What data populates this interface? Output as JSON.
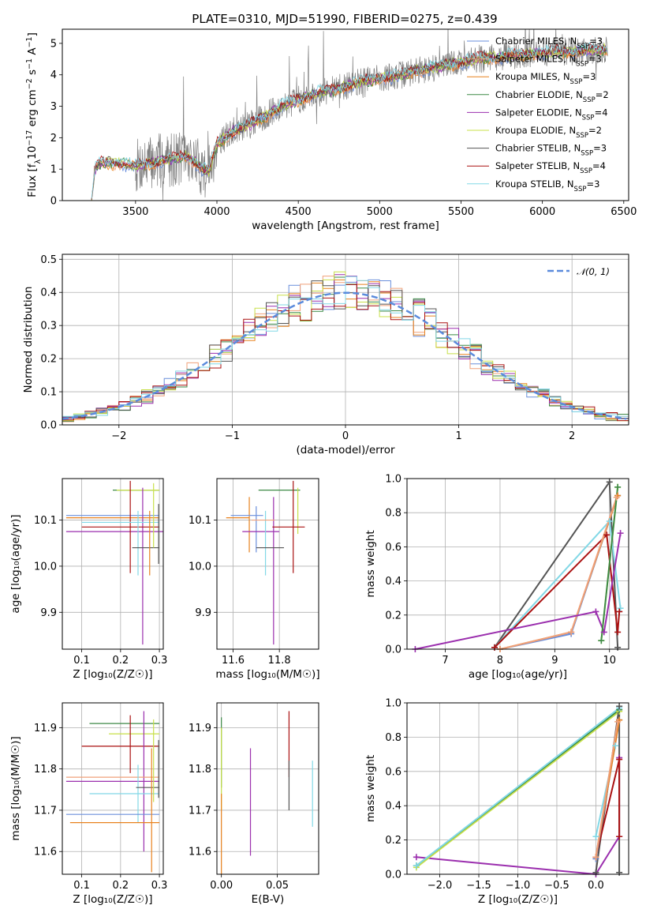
{
  "figure_title": "PLATE=0310, MJD=51990, FIBERID=0275, z=0.439",
  "palette": {
    "Chabrier MILES": "#6a8fdc",
    "Salpeter MILES": "#f0a17a",
    "Kroupa MILES": "#e8821e",
    "Chabrier ELODIE": "#3d8a47",
    "Salpeter ELODIE": "#9b2fae",
    "Kroupa ELODIE": "#c8e04a",
    "Chabrier STELIB": "#555555",
    "Salpeter STELIB": "#aa1111",
    "Kroupa STELIB": "#82d8e6",
    "data": "#808080",
    "normal": "#5b8bdc"
  },
  "chart_data": [
    {
      "type": "line",
      "id": "spectrum",
      "title": "PLATE=0310, MJD=51990, FIBERID=0275, z=0.439",
      "xlabel": "wavelength [Angstrom, rest frame]",
      "ylabel_parts": [
        "Flux [f",
        "λ",
        "10",
        "−17",
        " erg cm",
        "−2",
        " s",
        "−1",
        " A",
        "−1",
        "]"
      ],
      "xlim": [
        3050,
        6530
      ],
      "ylim": [
        0,
        5.45
      ],
      "xticks": [
        3500,
        4000,
        4500,
        5000,
        5500,
        6000,
        6500
      ],
      "xtick_labels": [
        "3500",
        "4000",
        "4500",
        "5000",
        "5500",
        "6000",
        "6500"
      ],
      "yticks": [
        0,
        1,
        2,
        3,
        4,
        5
      ],
      "ytick_labels": [
        "0",
        "1",
        "2",
        "3",
        "4",
        "5"
      ],
      "model_continuum": {
        "x": [
          3230,
          3250,
          3270,
          3300,
          3350,
          3400,
          3450,
          3500,
          3550,
          3600,
          3650,
          3700,
          3750,
          3800,
          3850,
          3900,
          3950,
          4000,
          4100,
          4200,
          4300,
          4400,
          4500,
          4600,
          4700,
          4800,
          4900,
          5000,
          5100,
          5200,
          5300,
          5400,
          5500,
          5600,
          5700,
          5800,
          5900,
          6000,
          6100,
          6200,
          6300,
          6400
        ],
        "y": [
          0.0,
          1.0,
          1.15,
          1.2,
          1.18,
          1.2,
          1.15,
          1.1,
          1.15,
          1.2,
          1.25,
          1.3,
          1.35,
          1.4,
          1.3,
          1.05,
          0.9,
          1.8,
          2.2,
          2.4,
          2.7,
          3.0,
          3.2,
          3.4,
          3.5,
          3.65,
          3.8,
          3.9,
          3.95,
          4.1,
          4.2,
          4.3,
          4.4,
          4.5,
          4.55,
          4.6,
          4.65,
          4.7,
          4.72,
          4.75,
          4.78,
          4.8
        ]
      },
      "data_range": [
        3500,
        6400
      ],
      "legend": [
        {
          "name": "Chabrier MILES",
          "nssp": "3"
        },
        {
          "name": "Salpeter MILES",
          "nssp": "3"
        },
        {
          "name": "Kroupa MILES",
          "nssp": "3"
        },
        {
          "name": "Chabrier ELODIE",
          "nssp": "2"
        },
        {
          "name": "Salpeter ELODIE",
          "nssp": "4"
        },
        {
          "name": "Kroupa ELODIE",
          "nssp": "2"
        },
        {
          "name": "Chabrier STELIB",
          "nssp": "3"
        },
        {
          "name": "Salpeter STELIB",
          "nssp": "4"
        },
        {
          "name": "Kroupa STELIB",
          "nssp": "3"
        }
      ],
      "legend_prefix": ", N",
      "legend_sub": "SSP",
      "legend_eq": "=",
      "legend_placement": "upper right",
      "grid": false
    },
    {
      "type": "step",
      "id": "residuals",
      "xlabel": "(data-model)/error",
      "ylabel": "Normed distribution",
      "xlim": [
        -2.5,
        2.5
      ],
      "ylim": [
        0,
        0.515
      ],
      "xticks": [
        -2,
        -1,
        0,
        1,
        2
      ],
      "xtick_labels": [
        "−2",
        "−1",
        "0",
        "1",
        "2"
      ],
      "yticks": [
        0,
        0.1,
        0.2,
        0.3,
        0.4,
        0.5
      ],
      "ytick_labels": [
        "0.0",
        "0.1",
        "0.2",
        "0.3",
        "0.4",
        "0.5"
      ],
      "legend": [
        "𝒩(0, 1)"
      ],
      "legend_placement": "upper right",
      "grid": true,
      "bin_width": 0.1
    },
    {
      "type": "errorbar",
      "id": "age-vs-Z",
      "xlabel": "Z [log₁₀(Z/Z☉)]",
      "ylabel": "age  [log₁₀(age/yr)]",
      "xlim": [
        0.05,
        0.31
      ],
      "ylim": [
        9.82,
        10.19
      ],
      "xticks": [
        0.1,
        0.2,
        0.3
      ],
      "xtick_labels": [
        "0.1",
        "0.2",
        "0.3"
      ],
      "yticks": [
        9.9,
        10.0,
        10.1
      ],
      "ytick_labels": [
        "9.9",
        "10.0",
        "10.1"
      ],
      "grid": true,
      "points": [
        {
          "series": "Chabrier MILES",
          "x": 0.18,
          "xerr": 0.12,
          "y": 10.11,
          "yerr": 0.0
        },
        {
          "series": "Kroupa MILES",
          "x": 0.18,
          "xerr": 0.12,
          "y": 10.105,
          "yerr": 0.0
        },
        {
          "series": "Chabrier ELODIE",
          "x": 0.24,
          "xerr": 0.06,
          "y": 10.165,
          "yerr": 0.0
        },
        {
          "series": "Kroupa ELODIE",
          "x": 0.245,
          "xerr": 0.055,
          "y": 10.165,
          "yerr": 0.0
        },
        {
          "series": "Salpeter ELODIE",
          "x": 0.26,
          "xerr": 0.2,
          "y": 10.075,
          "yerr": 0.0
        },
        {
          "series": "Salpeter ELODIE",
          "x": 0.257,
          "xerr": 0.0,
          "y": 10.0,
          "yerr": 0.17
        },
        {
          "series": "Salpeter STELIB",
          "x": 0.225,
          "xerr": 0.0,
          "y": 10.085,
          "yerr": 0.1
        },
        {
          "series": "Salpeter STELIB",
          "x": 0.2,
          "xerr": 0.1,
          "y": 10.085,
          "yerr": 0.0
        },
        {
          "series": "Kroupa STELIB",
          "x": 0.245,
          "xerr": 0.0,
          "y": 10.05,
          "yerr": 0.07
        },
        {
          "series": "Kroupa STELIB",
          "x": 0.2,
          "xerr": 0.1,
          "y": 10.095,
          "yerr": 0.0
        },
        {
          "series": "Chabrier STELIB",
          "x": 0.265,
          "xerr": 0.035,
          "y": 10.04,
          "yerr": 0.0
        },
        {
          "series": "Chabrier STELIB",
          "x": 0.298,
          "xerr": 0.0,
          "y": 10.07,
          "yerr": 0.065
        },
        {
          "series": "Kroupa ELODIE",
          "x": 0.285,
          "xerr": 0.0,
          "y": 10.11,
          "yerr": 0.07
        },
        {
          "series": "Kroupa MILES",
          "x": 0.275,
          "xerr": 0.0,
          "y": 10.05,
          "yerr": 0.07
        }
      ]
    },
    {
      "type": "errorbar",
      "id": "age-vs-mass",
      "xlabel": "mass [log₁₀(M/M☉)]",
      "ylabel": "",
      "xlim": [
        11.53,
        11.97
      ],
      "ylim": [
        9.82,
        10.19
      ],
      "xticks": [
        11.6,
        11.8
      ],
      "xtick_labels": [
        "11.6",
        "11.8"
      ],
      "yticks": [
        9.9,
        10.0,
        10.1
      ],
      "ytick_labels": [
        "9.9",
        "10.0",
        "10.1"
      ],
      "grid": true,
      "points": [
        {
          "series": "Kroupa MILES",
          "x": 11.67,
          "xerr": 0.0,
          "y": 10.09,
          "yerr": 0.06
        },
        {
          "series": "Kroupa MILES",
          "x": 11.62,
          "xerr": 0.05,
          "y": 10.105,
          "yerr": 0.0
        },
        {
          "series": "Chabrier MILES",
          "x": 11.7,
          "xerr": 0.0,
          "y": 10.08,
          "yerr": 0.05
        },
        {
          "series": "Chabrier MILES",
          "x": 11.66,
          "xerr": 0.07,
          "y": 10.11,
          "yerr": 0.0
        },
        {
          "series": "Salpeter ELODIE",
          "x": 11.775,
          "xerr": 0.0,
          "y": 9.99,
          "yerr": 0.16
        },
        {
          "series": "Salpeter ELODIE",
          "x": 11.72,
          "xerr": 0.08,
          "y": 10.075,
          "yerr": 0.0
        },
        {
          "series": "Chabrier ELODIE",
          "x": 11.8,
          "xerr": 0.09,
          "y": 10.165,
          "yerr": 0.0
        },
        {
          "series": "Kroupa ELODIE",
          "x": 11.88,
          "xerr": 0.0,
          "y": 10.12,
          "yerr": 0.05
        },
        {
          "series": "Salpeter STELIB",
          "x": 11.86,
          "xerr": 0.0,
          "y": 10.085,
          "yerr": 0.1
        },
        {
          "series": "Salpeter STELIB",
          "x": 11.84,
          "xerr": 0.07,
          "y": 10.085,
          "yerr": 0.0
        },
        {
          "series": "Kroupa STELIB",
          "x": 11.74,
          "xerr": 0.0,
          "y": 10.05,
          "yerr": 0.07
        },
        {
          "series": "Chabrier STELIB",
          "x": 11.76,
          "xerr": 0.06,
          "y": 10.04,
          "yerr": 0.0
        },
        {
          "series": "Salpeter MILES",
          "x": 11.73,
          "xerr": 0.05,
          "y": 10.1,
          "yerr": 0.0
        }
      ]
    },
    {
      "type": "line",
      "id": "massweight-vs-age",
      "xlabel": "age  [log₁₀(age/yr)]",
      "ylabel": "mass weight",
      "xlim": [
        6.3,
        10.35
      ],
      "ylim": [
        0,
        1.0
      ],
      "xticks": [
        7,
        8,
        9,
        10
      ],
      "xtick_labels": [
        "7",
        "8",
        "9",
        "10"
      ],
      "yticks": [
        0,
        0.2,
        0.4,
        0.6,
        0.8,
        1.0
      ],
      "ytick_labels": [
        "0.0",
        "0.2",
        "0.4",
        "0.6",
        "0.8",
        "1.0"
      ],
      "grid": true,
      "series": [
        {
          "name": "Chabrier STELIB",
          "x": [
            7.9,
            10.0,
            10.15
          ],
          "y": [
            0.01,
            0.98,
            0.01
          ]
        },
        {
          "name": "Kroupa STELIB",
          "x": [
            7.9,
            10.0,
            10.2
          ],
          "y": [
            0.01,
            0.75,
            0.24
          ]
        },
        {
          "name": "Salpeter STELIB",
          "x": [
            7.9,
            9.95,
            10.15,
            10.18
          ],
          "y": [
            0.01,
            0.67,
            0.1,
            0.22
          ]
        },
        {
          "name": "Chabrier MILES",
          "x": [
            8.0,
            9.3,
            10.15
          ],
          "y": [
            0.0,
            0.09,
            0.9
          ]
        },
        {
          "name": "Kroupa MILES",
          "x": [
            8.0,
            9.3,
            10.15
          ],
          "y": [
            0.0,
            0.1,
            0.9
          ]
        },
        {
          "name": "Salpeter MILES",
          "x": [
            8.0,
            9.3,
            10.13
          ],
          "y": [
            0.0,
            0.1,
            0.89
          ]
        },
        {
          "name": "Salpeter ELODIE",
          "x": [
            6.45,
            9.75,
            9.9,
            10.2
          ],
          "y": [
            0.0,
            0.22,
            0.1,
            0.68
          ]
        },
        {
          "name": "Kroupa ELODIE",
          "x": [
            9.85,
            10.15
          ],
          "y": [
            0.05,
            0.95
          ]
        },
        {
          "name": "Chabrier ELODIE",
          "x": [
            9.85,
            10.15
          ],
          "y": [
            0.05,
            0.95
          ]
        }
      ]
    },
    {
      "type": "errorbar",
      "id": "mass-vs-Z",
      "xlabel": "Z [log₁₀(Z/Z☉)]",
      "ylabel": "mass [log₁₀(M/M☉)]",
      "xlim": [
        0.05,
        0.31
      ],
      "ylim": [
        11.545,
        11.96
      ],
      "xticks": [
        0.1,
        0.2,
        0.3
      ],
      "xtick_labels": [
        "0.1",
        "0.2",
        "0.3"
      ],
      "yticks": [
        11.6,
        11.7,
        11.8,
        11.9
      ],
      "ytick_labels": [
        "11.6",
        "11.7",
        "11.8",
        "11.9"
      ],
      "grid": true,
      "points": [
        {
          "series": "Chabrier ELODIE",
          "x": 0.21,
          "xerr": 0.09,
          "y": 11.91,
          "yerr": 0.0
        },
        {
          "series": "Kroupa ELODIE",
          "x": 0.235,
          "xerr": 0.065,
          "y": 11.885,
          "yerr": 0.0
        },
        {
          "series": "Salpeter STELIB",
          "x": 0.2,
          "xerr": 0.1,
          "y": 11.855,
          "yerr": 0.0
        },
        {
          "series": "Salpeter STELIB",
          "x": 0.225,
          "xerr": 0.0,
          "y": 11.86,
          "yerr": 0.07
        },
        {
          "series": "Salpeter ELODIE",
          "x": 0.26,
          "xerr": 0.0,
          "y": 11.77,
          "yerr": 0.17
        },
        {
          "series": "Salpeter ELODIE",
          "x": 0.18,
          "xerr": 0.12,
          "y": 11.77,
          "yerr": 0.0
        },
        {
          "series": "Salpeter MILES",
          "x": 0.18,
          "xerr": 0.12,
          "y": 11.78,
          "yerr": 0.0
        },
        {
          "series": "Kroupa STELIB",
          "x": 0.245,
          "xerr": 0.0,
          "y": 11.74,
          "yerr": 0.07
        },
        {
          "series": "Kroupa STELIB",
          "x": 0.21,
          "xerr": 0.09,
          "y": 11.74,
          "yerr": 0.0
        },
        {
          "series": "Chabrier STELIB",
          "x": 0.27,
          "xerr": 0.03,
          "y": 11.755,
          "yerr": 0.0
        },
        {
          "series": "Chabrier STELIB",
          "x": 0.298,
          "xerr": 0.0,
          "y": 11.8,
          "yerr": 0.07
        },
        {
          "series": "Chabrier MILES",
          "x": 0.18,
          "xerr": 0.12,
          "y": 11.69,
          "yerr": 0.0
        },
        {
          "series": "Kroupa MILES",
          "x": 0.185,
          "xerr": 0.115,
          "y": 11.67,
          "yerr": 0.0
        },
        {
          "series": "Kroupa MILES",
          "x": 0.28,
          "xerr": 0.0,
          "y": 11.7,
          "yerr": 0.15
        },
        {
          "series": "Kroupa ELODIE",
          "x": 0.285,
          "xerr": 0.0,
          "y": 11.82,
          "yerr": 0.1
        }
      ]
    },
    {
      "type": "errorbar",
      "id": "mass-vs-EBV",
      "xlabel": "E(B-V)",
      "ylabel": "",
      "xlim": [
        -0.004,
        0.087
      ],
      "ylim": [
        11.545,
        11.96
      ],
      "xticks": [
        0.0,
        0.05
      ],
      "xtick_labels": [
        "0.00",
        "0.05"
      ],
      "yticks": [
        11.6,
        11.7,
        11.8,
        11.9
      ],
      "ytick_labels": [
        "11.6",
        "11.7",
        "11.8",
        "11.9"
      ],
      "grid": true,
      "points": [
        {
          "series": "Chabrier ELODIE",
          "x": 0.0,
          "xerr": 0.0,
          "y": 11.84,
          "yerr": 0.085
        },
        {
          "series": "Kroupa ELODIE",
          "x": 0.0,
          "xerr": 0.0,
          "y": 11.8,
          "yerr": 0.1
        },
        {
          "series": "Kroupa MILES",
          "x": 0.0,
          "xerr": 0.0,
          "y": 11.64,
          "yerr": 0.1
        },
        {
          "series": "Salpeter ELODIE",
          "x": 0.026,
          "xerr": 0.0,
          "y": 11.72,
          "yerr": 0.13
        },
        {
          "series": "Salpeter STELIB",
          "x": 0.0605,
          "xerr": 0.0,
          "y": 11.86,
          "yerr": 0.08
        },
        {
          "series": "Chabrier STELIB",
          "x": 0.0605,
          "xerr": 0.0,
          "y": 11.76,
          "yerr": 0.06
        },
        {
          "series": "Kroupa STELIB",
          "x": 0.0815,
          "xerr": 0.0,
          "y": 11.74,
          "yerr": 0.08
        }
      ]
    },
    {
      "type": "line",
      "id": "massweight-vs-Z",
      "xlabel": "Z [log₁₀(Z/Z☉)]",
      "ylabel": "mass weight",
      "xlim": [
        -2.42,
        0.42
      ],
      "ylim": [
        0,
        1.0
      ],
      "xticks": [
        -2.0,
        -1.5,
        -1.0,
        -0.5,
        0.0
      ],
      "xtick_labels": [
        "−2.0",
        "−1.5",
        "−1.0",
        "−0.5",
        "0.0"
      ],
      "yticks": [
        0,
        0.2,
        0.4,
        0.6,
        0.8,
        1.0
      ],
      "ytick_labels": [
        "0.0",
        "0.2",
        "0.4",
        "0.6",
        "0.8",
        "1.0"
      ],
      "grid": true,
      "series": [
        {
          "name": "Salpeter ELODIE",
          "x": [
            -2.3,
            0.0,
            0.3,
            0.3
          ],
          "y": [
            0.1,
            0.0,
            0.22,
            0.68
          ]
        },
        {
          "name": "Kroupa ELODIE",
          "x": [
            -2.3,
            0.3
          ],
          "y": [
            0.04,
            0.95
          ]
        },
        {
          "name": "Chabrier ELODIE",
          "x": [
            -2.3,
            0.3
          ],
          "y": [
            0.05,
            0.96
          ]
        },
        {
          "name": "Kroupa STELIB",
          "x": [
            -2.3,
            0.3
          ],
          "y": [
            0.05,
            0.97
          ]
        },
        {
          "name": "Chabrier STELIB",
          "x": [
            0.0,
            0.3,
            0.3
          ],
          "y": [
            0.01,
            0.98,
            0.01
          ]
        },
        {
          "name": "Kroupa STELIB",
          "x": [
            0.0,
            0.25
          ],
          "y": [
            0.22,
            0.75
          ]
        },
        {
          "name": "Salpeter STELIB",
          "x": [
            0.0,
            0.3,
            0.3
          ],
          "y": [
            0.1,
            0.67,
            0.22
          ]
        },
        {
          "name": "Chabrier MILES",
          "x": [
            0.0,
            0.3
          ],
          "y": [
            0.09,
            0.9
          ]
        },
        {
          "name": "Kroupa MILES",
          "x": [
            0.0,
            0.3
          ],
          "y": [
            0.1,
            0.9
          ]
        },
        {
          "name": "Salpeter MILES",
          "x": [
            0.0,
            0.28
          ],
          "y": [
            0.1,
            0.89
          ]
        }
      ]
    }
  ]
}
